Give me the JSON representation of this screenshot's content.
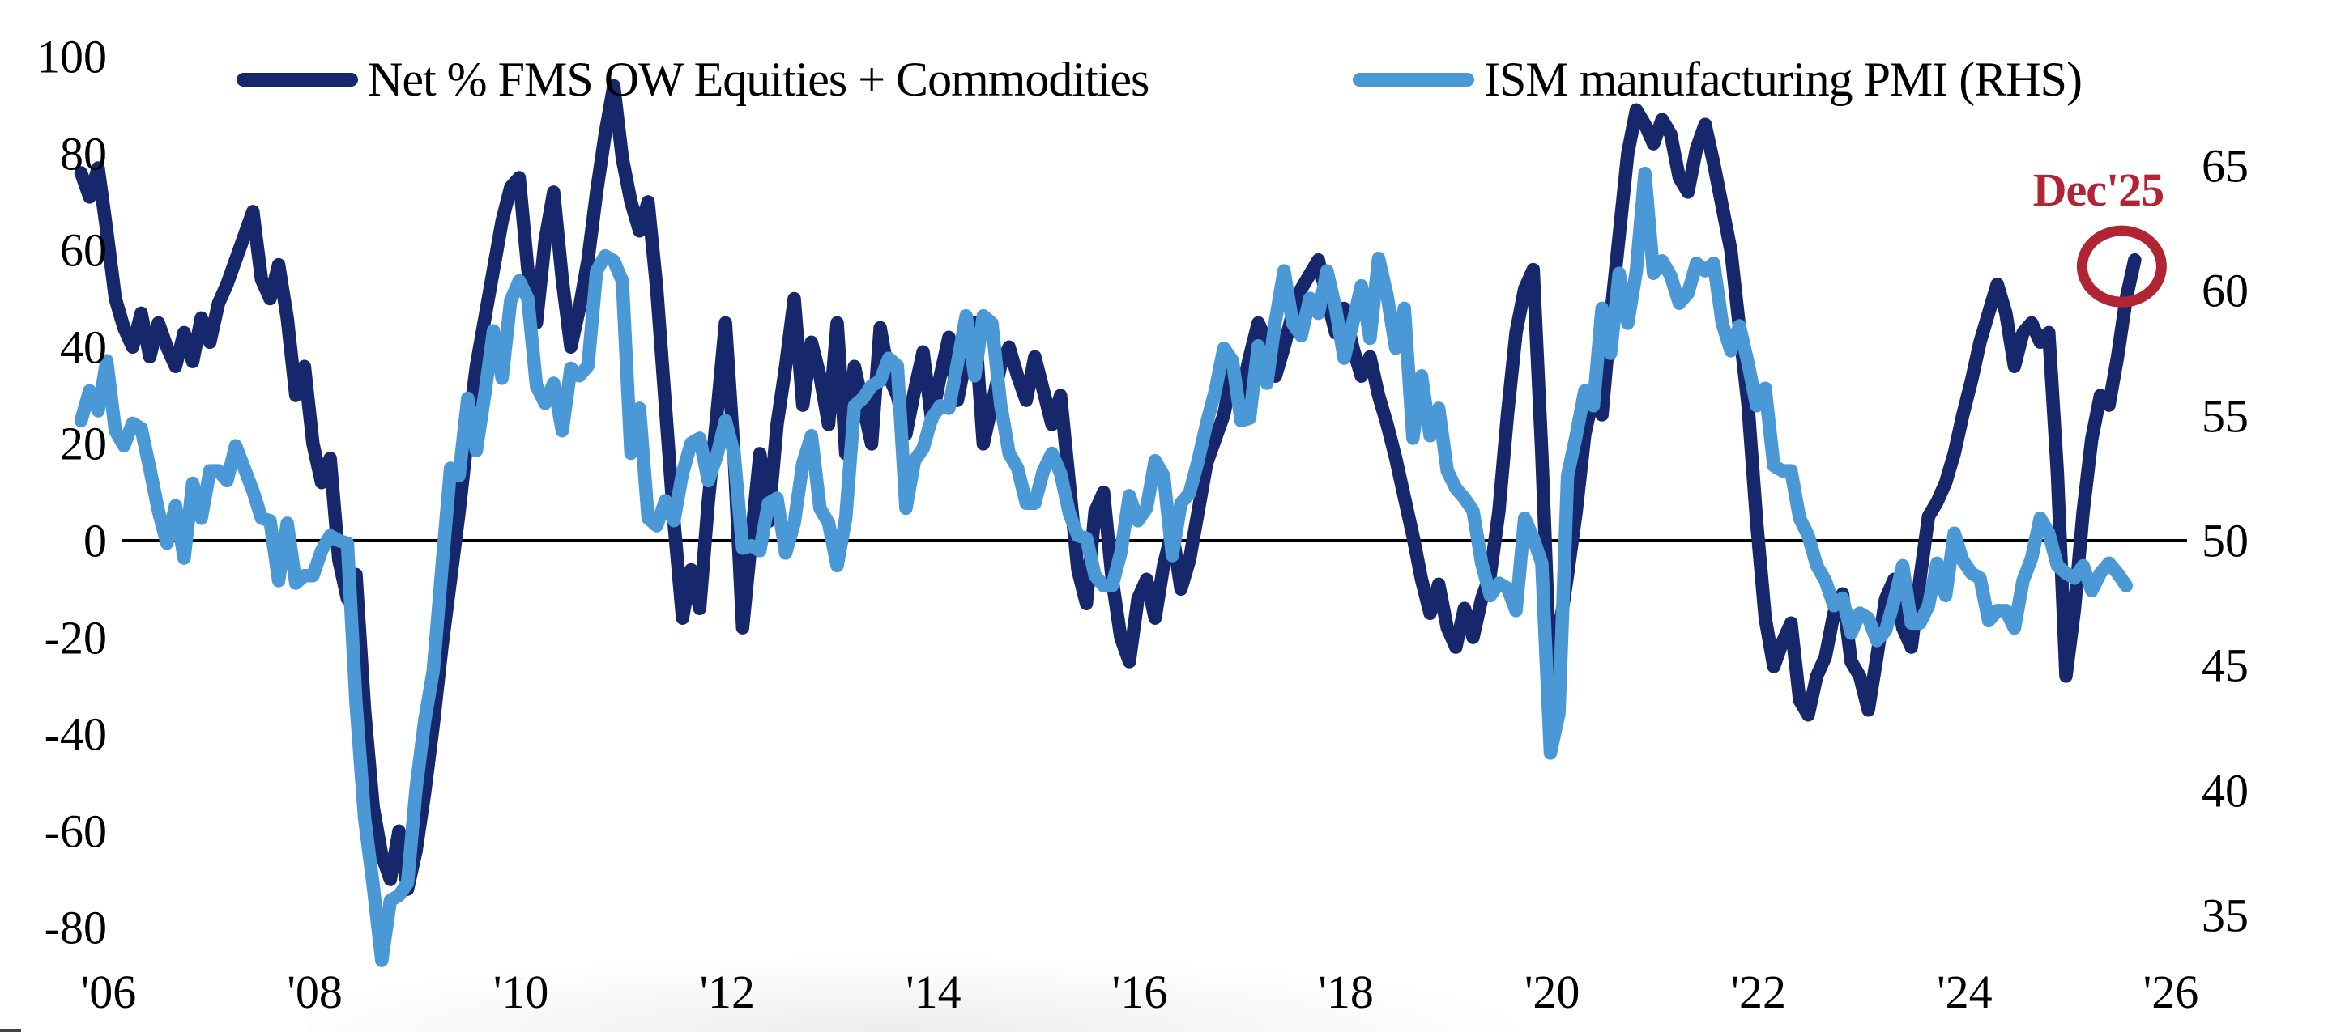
{
  "colors": {
    "fms_navy": "#16276b",
    "ism_blue": "#4a98d5",
    "annotation_red": "#b22433",
    "axis_black": "#000000"
  },
  "legend": [
    {
      "label": "Net % FMS OW Equities + Commodities",
      "color": "#16276b"
    },
    {
      "label": "ISM manufacturing PMI (RHS)",
      "color": "#4a98d5"
    }
  ],
  "annotation": {
    "label": "Dec'25",
    "color": "#b22433"
  },
  "left_axis": {
    "ticks": [
      "100",
      "80",
      "60",
      "40",
      "20",
      "0",
      "-20",
      "-40",
      "-60",
      "-80"
    ]
  },
  "right_axis": {
    "ticks": [
      "65",
      "60",
      "55",
      "50",
      "45",
      "40",
      "35"
    ]
  },
  "x_axis": {
    "ticks": [
      "'06",
      "'08",
      "'10",
      "'12",
      "'14",
      "'16",
      "'18",
      "'20",
      "'22",
      "'24",
      "'26"
    ]
  },
  "chart_data": {
    "type": "line",
    "frequency": "monthly",
    "x_range": [
      "2006-01",
      "2025-12"
    ],
    "left_ylim": [
      -80,
      100
    ],
    "right_ylim": [
      35,
      65
    ],
    "grid": "off",
    "legend_position": "top",
    "zero_line_left_value": 0,
    "annotation_point": {
      "label": "Dec'25",
      "series": "Net % FMS OW Equities + Commodities",
      "value": 58
    },
    "series": [
      {
        "name": "Net % FMS OW Equities + Commodities",
        "axis": "left",
        "color": "#16276b",
        "start": "2006-01",
        "values": [
          76,
          71,
          77,
          64,
          50,
          44,
          40,
          47,
          38,
          45,
          40,
          36,
          43,
          37,
          46,
          41,
          49,
          53,
          58,
          63,
          68,
          54,
          50,
          57,
          46,
          30,
          36,
          20,
          12,
          17,
          -4,
          -12,
          -7,
          -35,
          -55,
          -65,
          -70,
          -60,
          -72,
          -64,
          -52,
          -38,
          -22,
          -8,
          6,
          22,
          36,
          46,
          56,
          66,
          73,
          75,
          56,
          45,
          62,
          72,
          54,
          40,
          48,
          58,
          72,
          84,
          94,
          79,
          70,
          64,
          70,
          52,
          28,
          4,
          -16,
          -6,
          -14,
          8,
          26,
          45,
          18,
          -18,
          0,
          18,
          4,
          24,
          36,
          50,
          28,
          41,
          34,
          24,
          45,
          18,
          36,
          28,
          20,
          44,
          34,
          30,
          22,
          31,
          39,
          25,
          34,
          42,
          29,
          38,
          45,
          20,
          28,
          36,
          40,
          34,
          29,
          38,
          31,
          24,
          30,
          12,
          -6,
          -13,
          6,
          10,
          -8,
          -20,
          -25,
          -12,
          -8,
          -16,
          -5,
          2,
          -10,
          -4,
          6,
          16,
          21,
          26,
          35,
          30,
          38,
          45,
          41,
          34,
          40,
          47,
          52,
          55,
          58,
          50,
          43,
          48,
          40,
          34,
          38,
          30,
          24,
          17,
          9,
          1,
          -8,
          -15,
          -9,
          -18,
          -22,
          -14,
          -20,
          -12,
          -7,
          6,
          26,
          43,
          52,
          56,
          18,
          -28,
          -19,
          -7,
          6,
          22,
          30,
          26,
          46,
          63,
          80,
          89,
          86,
          82,
          87,
          84,
          75,
          72,
          81,
          86,
          78,
          69,
          60,
          44,
          28,
          4,
          -16,
          -26,
          -21,
          -17,
          -33,
          -36,
          -28,
          -24,
          -15,
          -11,
          -25,
          -28,
          -35,
          -24,
          -12,
          -8,
          -18,
          -22,
          -8,
          5,
          8,
          12,
          18,
          26,
          33,
          41,
          47,
          53,
          47,
          36,
          43,
          45,
          41,
          43,
          14,
          -28,
          -14,
          6,
          21,
          30,
          28,
          38,
          50,
          58
        ]
      },
      {
        "name": "ISM manufacturing PMI (RHS)",
        "axis": "right",
        "color": "#4a98d5",
        "start": "2006-01",
        "values": [
          54.8,
          56.0,
          55.2,
          57.2,
          54.4,
          53.8,
          54.7,
          54.5,
          52.9,
          51.2,
          49.9,
          51.4,
          49.3,
          52.3,
          50.9,
          52.8,
          52.8,
          52.4,
          53.8,
          52.9,
          52.0,
          50.9,
          50.8,
          48.4,
          50.7,
          48.3,
          48.6,
          48.6,
          49.6,
          50.2,
          50.0,
          49.9,
          43.5,
          38.9,
          36.2,
          33.2,
          35.6,
          35.8,
          36.3,
          40.1,
          42.8,
          44.8,
          48.9,
          52.9,
          52.6,
          55.7,
          53.6,
          55.9,
          58.4,
          56.5,
          59.6,
          60.4,
          59.7,
          56.2,
          55.5,
          56.3,
          54.4,
          56.9,
          56.6,
          57.0,
          60.8,
          61.4,
          61.2,
          60.4,
          53.5,
          55.3,
          50.9,
          50.6,
          51.6,
          50.8,
          52.7,
          53.9,
          54.1,
          52.4,
          53.4,
          54.8,
          53.5,
          49.7,
          49.8,
          49.6,
          51.5,
          51.7,
          49.5,
          50.7,
          53.1,
          54.2,
          51.3,
          50.7,
          49.0,
          50.9,
          55.4,
          55.7,
          56.2,
          56.4,
          57.3,
          57.0,
          51.3,
          53.2,
          53.7,
          54.9,
          55.4,
          55.3,
          57.1,
          59.0,
          56.6,
          59.0,
          58.7,
          55.5,
          53.5,
          52.9,
          51.5,
          51.5,
          52.8,
          53.5,
          52.7,
          51.1,
          50.2,
          50.1,
          48.6,
          48.2,
          48.2,
          49.5,
          51.8,
          50.8,
          51.3,
          53.2,
          52.6,
          49.4,
          51.5,
          51.9,
          53.2,
          54.7,
          56.0,
          57.7,
          57.2,
          54.8,
          54.9,
          57.8,
          56.3,
          58.8,
          60.8,
          58.7,
          58.2,
          59.7,
          59.1,
          60.8,
          59.3,
          57.3,
          58.7,
          60.2,
          58.1,
          61.3,
          59.8,
          57.7,
          59.3,
          54.1,
          56.6,
          54.2,
          55.3,
          52.8,
          52.1,
          51.7,
          51.2,
          49.1,
          47.8,
          48.3,
          48.1,
          47.2,
          50.9,
          50.1,
          49.1,
          41.5,
          43.1,
          52.6,
          54.2,
          56.0,
          55.4,
          59.3,
          57.5,
          60.7,
          58.7,
          60.8,
          64.7,
          60.7,
          61.2,
          60.6,
          59.5,
          59.9,
          61.1,
          60.8,
          61.1,
          58.7,
          57.6,
          58.6,
          57.1,
          55.4,
          56.1,
          53.0,
          52.8,
          52.8,
          50.9,
          50.2,
          49.0,
          48.4,
          47.4,
          47.7,
          46.3,
          47.1,
          46.9,
          46.0,
          46.4,
          47.6,
          49.0,
          46.7,
          46.7,
          47.4,
          49.1,
          47.8,
          50.3,
          49.2,
          48.7,
          48.5,
          46.8,
          47.2,
          47.2,
          46.5,
          48.4,
          49.3,
          50.9,
          50.3,
          49.0,
          48.7,
          48.5,
          49.0,
          48.0,
          48.7,
          49.1,
          48.7,
          48.2
        ]
      }
    ]
  }
}
